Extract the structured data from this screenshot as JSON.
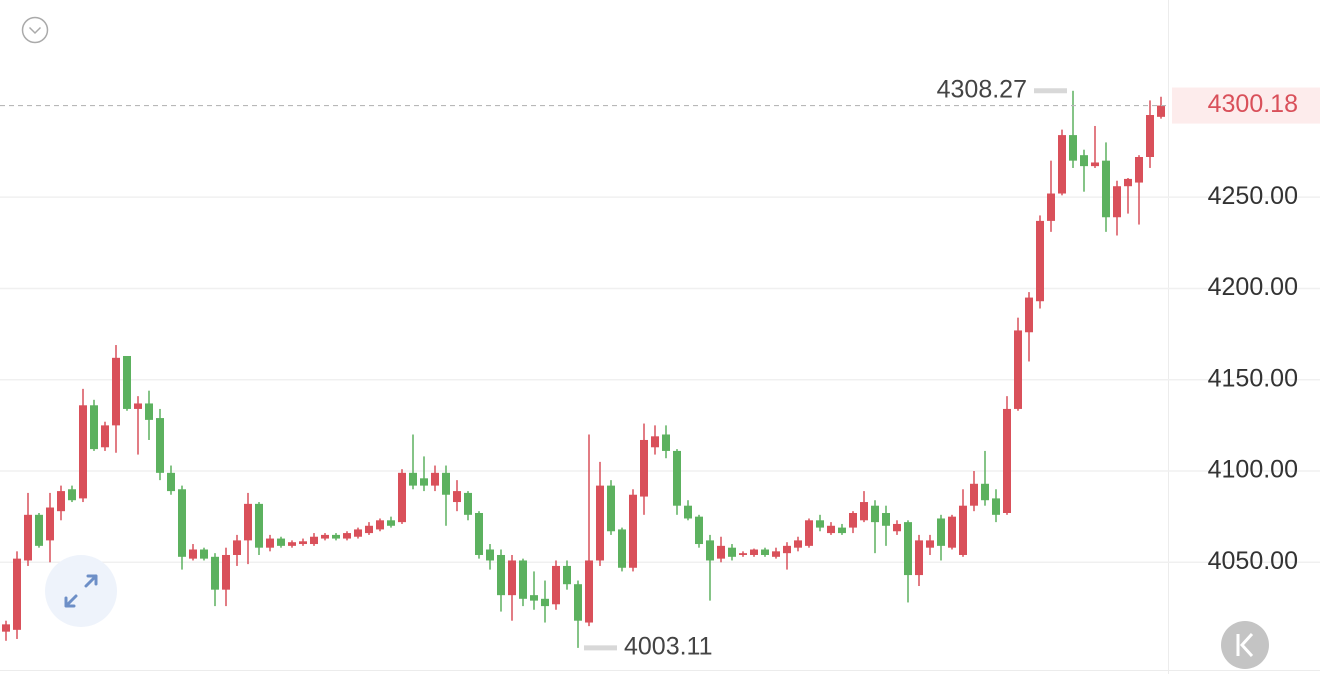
{
  "chart_data": {
    "type": "candlestick",
    "up_color": "#d9505a",
    "down_color": "#5cb15f",
    "ylim": [
      3991,
      4358
    ],
    "yticks": [
      {
        "value": 4050,
        "label": "4050.00"
      },
      {
        "value": 4100,
        "label": "4100.00"
      },
      {
        "value": 4150,
        "label": "4150.00"
      },
      {
        "value": 4200,
        "label": "4200.00"
      },
      {
        "value": 4250,
        "label": "4250.00"
      }
    ],
    "grid": true,
    "open": [
      4012,
      4013,
      4051,
      4076,
      4062,
      4078,
      4090,
      4085,
      4136,
      4113,
      4125,
      4163,
      4134,
      4137,
      4129,
      4099,
      4090,
      4052,
      4057,
      4053,
      4035,
      4054,
      4062,
      4082,
      4058,
      4063,
      4059,
      4060,
      4060,
      4063,
      4065,
      4063,
      4064,
      4066,
      4068,
      4073,
      4072,
      4099,
      4096,
      4092,
      4099,
      4083,
      4088,
      4077,
      4057,
      4054,
      4032,
      4051,
      4032,
      4030,
      4027,
      4048,
      4038,
      4017,
      4051,
      4092,
      4068,
      4047,
      4086,
      4113,
      4120,
      4111,
      4081,
      4075,
      4062,
      4052,
      4058,
      4054,
      4054,
      4057,
      4053,
      4055,
      4058,
      4059,
      4073,
      4066,
      4069,
      4069,
      4073,
      4081,
      4077,
      4067,
      4072,
      4043,
      4058,
      4074,
      4058,
      4054,
      4081,
      4093,
      4085,
      4077,
      4134,
      4176,
      4193,
      4237,
      4252,
      4284,
      4273,
      4267,
      4270,
      4239,
      4256,
      4258,
      4272,
      4294
    ],
    "high": [
      4018,
      4056,
      4088,
      4077,
      4088,
      4092,
      4092,
      4145,
      4139,
      4127,
      4169,
      4163,
      4141,
      4144,
      4134,
      4103,
      4092,
      4060,
      4058,
      4055,
      4058,
      4065,
      4088,
      4083,
      4065,
      4064,
      4062,
      4063,
      4066,
      4066,
      4066,
      4067,
      4069,
      4072,
      4074,
      4075,
      4101,
      4120,
      4108,
      4103,
      4103,
      4095,
      4089,
      4078,
      4060,
      4057,
      4054,
      4052,
      4045,
      4040,
      4051,
      4051,
      4040,
      4120,
      4105,
      4095,
      4069,
      4090,
      4126,
      4125,
      4125,
      4112,
      4084,
      4076,
      4065,
      4064,
      4060,
      4056,
      4057.5,
      4058,
      4058,
      4061,
      4064,
      4074,
      4076,
      4072,
      4071,
      4078,
      4089,
      4084,
      4081,
      4073,
      4073,
      4065,
      4065,
      4076,
      4076,
      4090,
      4100,
      4111,
      4090,
      4141,
      4184,
      4198,
      4240,
      4270,
      4287,
      4308.27,
      4276,
      4289,
      4280,
      4259,
      4260.5,
      4273,
      4303,
      4305
    ],
    "low": [
      4007,
      4008,
      4048,
      4058,
      4050,
      4073,
      4083,
      4083,
      4111,
      4111,
      4110,
      4133,
      4109,
      4117,
      4095,
      4087,
      4046,
      4051,
      4051,
      4026,
      4026,
      4048,
      4049,
      4054,
      4056,
      4058,
      4058,
      4059,
      4059,
      4062,
      4062,
      4062,
      4063,
      4065,
      4067,
      4069,
      4071,
      4090,
      4089,
      4089,
      4070,
      4078,
      4073,
      4052,
      4046,
      4023,
      4018,
      4026,
      4024,
      4017,
      4024,
      4035,
      4003.11,
      4015,
      4048,
      4065,
      4045,
      4045,
      4076,
      4109,
      4107,
      4076,
      4073,
      4058,
      4029,
      4050,
      4051,
      4053,
      4053,
      4053,
      4052,
      4046,
      4056,
      4058,
      4067,
      4065,
      4065,
      4066,
      4072,
      4055,
      4059,
      4065,
      4028,
      4037,
      4054,
      4051,
      4057,
      4053,
      4078,
      4081,
      4072,
      4076,
      4133,
      4160,
      4189,
      4231,
      4251,
      4266,
      4253,
      4266,
      4231,
      4229,
      4241,
      4235,
      4266,
      4293
    ],
    "close": [
      4016,
      4052,
      4076,
      4059,
      4080,
      4089,
      4084,
      4136,
      4112,
      4125,
      4162,
      4134,
      4137,
      4128,
      4099,
      4089,
      4053,
      4057,
      4052,
      4035,
      4054,
      4062,
      4082,
      4058,
      4063,
      4059,
      4061,
      4061.5,
      4064,
      4065,
      4063,
      4066,
      4068,
      4070,
      4073,
      4070,
      4099,
      4092,
      4092,
      4099,
      4087,
      4089,
      4076,
      4054,
      4051,
      4032,
      4051,
      4030,
      4029,
      4026,
      4048,
      4038,
      4018,
      4051,
      4092,
      4067,
      4047,
      4087,
      4117,
      4119,
      4111,
      4081,
      4074,
      4060,
      4051,
      4059,
      4053,
      4055,
      4057,
      4054,
      4056,
      4059,
      4062,
      4073,
      4069,
      4070,
      4066,
      4077,
      4083,
      4072,
      4070,
      4071,
      4043,
      4062,
      4062,
      4059,
      4075,
      4081,
      4093,
      4084,
      4076,
      4134,
      4177,
      4195,
      4237,
      4252,
      4284,
      4270,
      4267,
      4269,
      4239,
      4256,
      4260,
      4272,
      4295,
      4300.18
    ]
  }
}
